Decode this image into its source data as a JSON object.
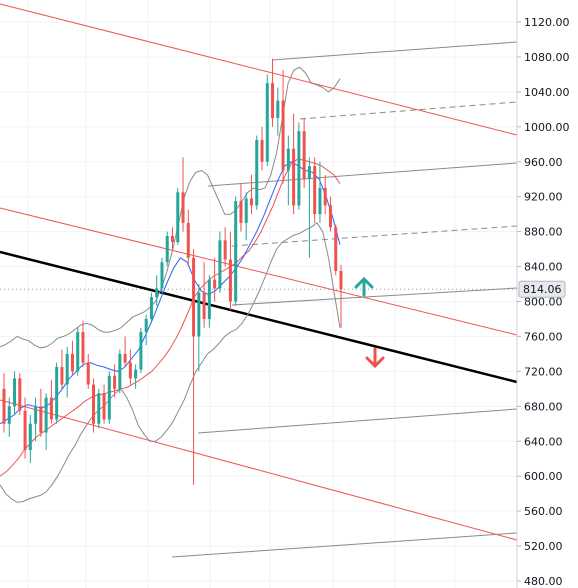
{
  "chart_data": {
    "type": "candlestick",
    "axis": {
      "side": "right",
      "ylim": [
        470,
        1135
      ],
      "ticks": [
        1120,
        1080,
        1040,
        1000,
        960,
        920,
        880,
        840,
        800,
        760,
        720,
        680,
        640,
        600,
        560,
        520,
        480
      ],
      "tick_labels": [
        "1120.00",
        "1080.00",
        "1040.00",
        "1000.00",
        "960.00",
        "920.00",
        "880.00",
        "840.00",
        "800.00",
        "760.00",
        "720.00",
        "680.00",
        "640.00",
        "600.00",
        "560.00",
        "520.00",
        "480.00"
      ]
    },
    "grid": true,
    "last_price": {
      "value": 814.06,
      "label": "814.06"
    },
    "candles": [
      {
        "o": 700,
        "h": 718,
        "l": 650,
        "c": 660
      },
      {
        "o": 660,
        "h": 690,
        "l": 645,
        "c": 680
      },
      {
        "o": 680,
        "h": 720,
        "l": 670,
        "c": 712
      },
      {
        "o": 712,
        "h": 718,
        "l": 670,
        "c": 675
      },
      {
        "o": 675,
        "h": 690,
        "l": 620,
        "c": 630
      },
      {
        "o": 630,
        "h": 670,
        "l": 615,
        "c": 660
      },
      {
        "o": 660,
        "h": 690,
        "l": 640,
        "c": 680
      },
      {
        "o": 680,
        "h": 700,
        "l": 645,
        "c": 650
      },
      {
        "o": 650,
        "h": 695,
        "l": 630,
        "c": 690
      },
      {
        "o": 690,
        "h": 710,
        "l": 660,
        "c": 665
      },
      {
        "o": 665,
        "h": 730,
        "l": 660,
        "c": 725
      },
      {
        "o": 725,
        "h": 745,
        "l": 700,
        "c": 705
      },
      {
        "o": 705,
        "h": 748,
        "l": 690,
        "c": 740
      },
      {
        "o": 740,
        "h": 755,
        "l": 715,
        "c": 720
      },
      {
        "o": 720,
        "h": 770,
        "l": 715,
        "c": 765
      },
      {
        "o": 765,
        "h": 778,
        "l": 725,
        "c": 730
      },
      {
        "o": 730,
        "h": 740,
        "l": 700,
        "c": 705
      },
      {
        "o": 705,
        "h": 712,
        "l": 650,
        "c": 660
      },
      {
        "o": 660,
        "h": 700,
        "l": 655,
        "c": 695
      },
      {
        "o": 695,
        "h": 705,
        "l": 660,
        "c": 665
      },
      {
        "o": 665,
        "h": 720,
        "l": 660,
        "c": 715
      },
      {
        "o": 715,
        "h": 728,
        "l": 690,
        "c": 700
      },
      {
        "o": 700,
        "h": 745,
        "l": 695,
        "c": 740
      },
      {
        "o": 740,
        "h": 760,
        "l": 725,
        "c": 730
      },
      {
        "o": 730,
        "h": 745,
        "l": 705,
        "c": 712
      },
      {
        "o": 712,
        "h": 728,
        "l": 700,
        "c": 722
      },
      {
        "o": 722,
        "h": 770,
        "l": 718,
        "c": 765
      },
      {
        "o": 765,
        "h": 785,
        "l": 750,
        "c": 780
      },
      {
        "o": 780,
        "h": 810,
        "l": 775,
        "c": 805
      },
      {
        "o": 805,
        "h": 830,
        "l": 795,
        "c": 815
      },
      {
        "o": 815,
        "h": 850,
        "l": 810,
        "c": 845
      },
      {
        "o": 845,
        "h": 880,
        "l": 840,
        "c": 875
      },
      {
        "o": 875,
        "h": 885,
        "l": 860,
        "c": 868
      },
      {
        "o": 868,
        "h": 930,
        "l": 865,
        "c": 925
      },
      {
        "o": 925,
        "h": 965,
        "l": 880,
        "c": 890
      },
      {
        "o": 890,
        "h": 905,
        "l": 840,
        "c": 850
      },
      {
        "o": 850,
        "h": 860,
        "l": 590,
        "c": 760
      },
      {
        "o": 760,
        "h": 820,
        "l": 720,
        "c": 810
      },
      {
        "o": 810,
        "h": 845,
        "l": 770,
        "c": 780
      },
      {
        "o": 780,
        "h": 830,
        "l": 770,
        "c": 825
      },
      {
        "o": 825,
        "h": 850,
        "l": 800,
        "c": 815
      },
      {
        "o": 815,
        "h": 880,
        "l": 810,
        "c": 870
      },
      {
        "o": 870,
        "h": 885,
        "l": 840,
        "c": 848
      },
      {
        "o": 848,
        "h": 880,
        "l": 790,
        "c": 800
      },
      {
        "o": 800,
        "h": 920,
        "l": 795,
        "c": 915
      },
      {
        "o": 915,
        "h": 935,
        "l": 880,
        "c": 890
      },
      {
        "o": 890,
        "h": 925,
        "l": 870,
        "c": 918
      },
      {
        "o": 918,
        "h": 945,
        "l": 900,
        "c": 910
      },
      {
        "o": 910,
        "h": 990,
        "l": 905,
        "c": 985
      },
      {
        "o": 985,
        "h": 1000,
        "l": 950,
        "c": 960
      },
      {
        "o": 960,
        "h": 1060,
        "l": 955,
        "c": 1050
      },
      {
        "o": 1050,
        "h": 1078,
        "l": 1000,
        "c": 1010
      },
      {
        "o": 1010,
        "h": 1045,
        "l": 990,
        "c": 1030
      },
      {
        "o": 1030,
        "h": 1065,
        "l": 935,
        "c": 950
      },
      {
        "o": 950,
        "h": 990,
        "l": 910,
        "c": 975
      },
      {
        "o": 975,
        "h": 1015,
        "l": 900,
        "c": 910
      },
      {
        "o": 910,
        "h": 1005,
        "l": 905,
        "c": 995
      },
      {
        "o": 995,
        "h": 1010,
        "l": 930,
        "c": 940
      },
      {
        "o": 940,
        "h": 965,
        "l": 850,
        "c": 955
      },
      {
        "o": 955,
        "h": 965,
        "l": 890,
        "c": 900
      },
      {
        "o": 900,
        "h": 960,
        "l": 890,
        "c": 930
      },
      {
        "o": 930,
        "h": 945,
        "l": 900,
        "c": 910
      },
      {
        "o": 910,
        "h": 920,
        "l": 880,
        "c": 885
      },
      {
        "o": 885,
        "h": 888,
        "l": 830,
        "c": 835
      },
      {
        "o": 835,
        "h": 842,
        "l": 770,
        "c": 814
      }
    ],
    "bollinger_upper": [
      748,
      751,
      755,
      760,
      757,
      755,
      750,
      747,
      748,
      752,
      758,
      760,
      763,
      768,
      773,
      775,
      773,
      768,
      765,
      765,
      767,
      770,
      776,
      782,
      785,
      788,
      793,
      800,
      815,
      835,
      860,
      890,
      920,
      938,
      948,
      950,
      945,
      930,
      915,
      900,
      900,
      905,
      915,
      925,
      930,
      928,
      930,
      945,
      970,
      1010,
      1050,
      1065,
      1068,
      1062,
      1050,
      1048,
      1045,
      1040,
      1045,
      1055
    ],
    "bollinger_lower": [
      590,
      580,
      574,
      570,
      571,
      574,
      576,
      578,
      582,
      590,
      600,
      612,
      625,
      635,
      648,
      658,
      668,
      675,
      680,
      688,
      695,
      700,
      690,
      676,
      658,
      648,
      640,
      640,
      645,
      653,
      662,
      675,
      688,
      705,
      720,
      730,
      740,
      745,
      752,
      760,
      765,
      768,
      775,
      785,
      798,
      812,
      828,
      845,
      860,
      868,
      872,
      876,
      878,
      882,
      885,
      890,
      880,
      850,
      810,
      770
    ],
    "sma_red": [
      600,
      605,
      612,
      620,
      630,
      638,
      645,
      650,
      655,
      660,
      665,
      670,
      675,
      680,
      686,
      690,
      693,
      694,
      696,
      698,
      700,
      702,
      706,
      710,
      715,
      720,
      728,
      736,
      746,
      758,
      772,
      788,
      805,
      815,
      822,
      828,
      832,
      836,
      840,
      845,
      852,
      858,
      868,
      880,
      895,
      910,
      928,
      945,
      958,
      963,
      962,
      960,
      958,
      955,
      950,
      945,
      935
    ],
    "ema_blue": [
      660,
      665,
      670,
      678,
      682,
      680,
      678,
      682,
      690,
      700,
      712,
      720,
      728,
      730,
      727,
      725,
      722,
      720,
      725,
      735,
      745,
      762,
      780,
      800,
      820,
      838,
      850,
      845,
      825,
      812,
      808,
      812,
      820,
      828,
      838,
      850,
      865,
      880,
      898,
      918,
      938,
      955,
      960,
      955,
      950,
      948,
      940,
      920,
      895,
      865
    ],
    "arrows": [
      {
        "direction": "up",
        "color": "#26a69a"
      },
      {
        "direction": "down",
        "color": "#ef5350"
      }
    ],
    "colors": {
      "up": "#26a69a",
      "down": "#ef5350",
      "channel": "#ef5350",
      "trend": "#000000",
      "bollinger": "#8a8a8a",
      "ema": "#2962ff",
      "grid": "#f0f3fa"
    }
  }
}
